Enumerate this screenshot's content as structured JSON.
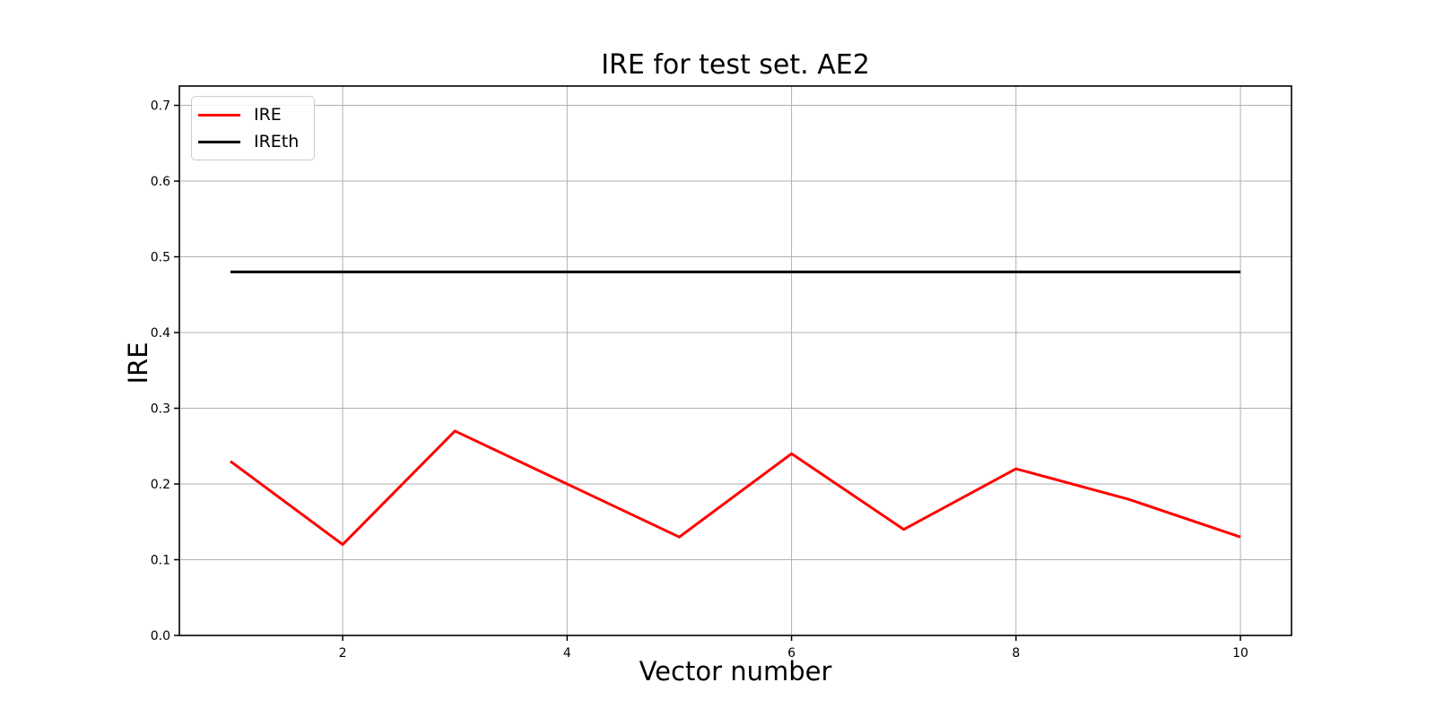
{
  "figure": {
    "background": "#ffffff"
  },
  "chart_data": {
    "type": "line",
    "title": "IRE for test set. AE2",
    "xlabel": "Vector number",
    "ylabel": "IRE",
    "x": [
      1,
      2,
      3,
      4,
      5,
      6,
      7,
      8,
      9,
      10
    ],
    "series": [
      {
        "name": "IRE",
        "color": "#ff0000",
        "values": [
          0.23,
          0.12,
          0.27,
          0.2,
          0.13,
          0.24,
          0.14,
          0.22,
          0.18,
          0.13
        ]
      },
      {
        "name": "IREth",
        "color": "#000000",
        "values": [
          0.48,
          0.48,
          0.48,
          0.48,
          0.48,
          0.48,
          0.48,
          0.48,
          0.48,
          0.48
        ]
      }
    ],
    "xlim": [
      0.545,
      10.455
    ],
    "ylim": [
      0,
      0.7255
    ],
    "xticks": [
      2,
      4,
      6,
      8,
      10
    ],
    "xtick_labels": [
      "2",
      "4",
      "6",
      "8",
      "10"
    ],
    "yticks": [
      0.0,
      0.1,
      0.2,
      0.3,
      0.4,
      0.5,
      0.6,
      0.7
    ],
    "ytick_labels": [
      "0.0",
      "0.1",
      "0.2",
      "0.3",
      "0.4",
      "0.5",
      "0.6",
      "0.7"
    ],
    "grid": true,
    "grid_color": "#b0b0b0",
    "axis_color": "#000000",
    "legend": {
      "position": "upper-left",
      "entries": [
        "IRE",
        "IREth"
      ]
    }
  }
}
